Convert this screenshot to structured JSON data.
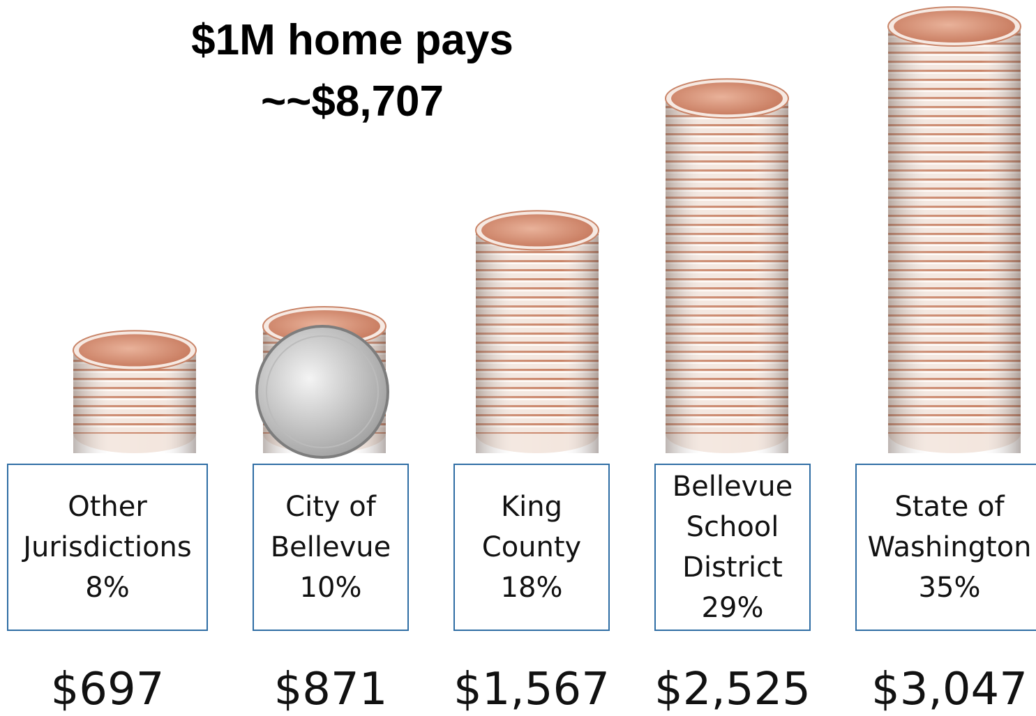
{
  "chart_data": {
    "type": "coin-stack",
    "title": "$1M home pays",
    "subtitle": "~~$8,707",
    "categories": [
      [
        "Other",
        "Jurisdictions"
      ],
      [
        "City of",
        "Bellevue"
      ],
      [
        "King",
        "County"
      ],
      [
        "Bellevue",
        "School",
        "District"
      ],
      [
        "State of",
        "Washington"
      ]
    ],
    "values": [
      8,
      10,
      18,
      29,
      35
    ],
    "value_labels": [
      "8%",
      "10%",
      "18%",
      "29%",
      "35%"
    ],
    "amounts": [
      697,
      871,
      1567,
      2525,
      3047
    ],
    "amount_labels": [
      "$697",
      "$871",
      "$1,567",
      "$2,525",
      "$3,047"
    ],
    "color": "#2e6da4"
  }
}
